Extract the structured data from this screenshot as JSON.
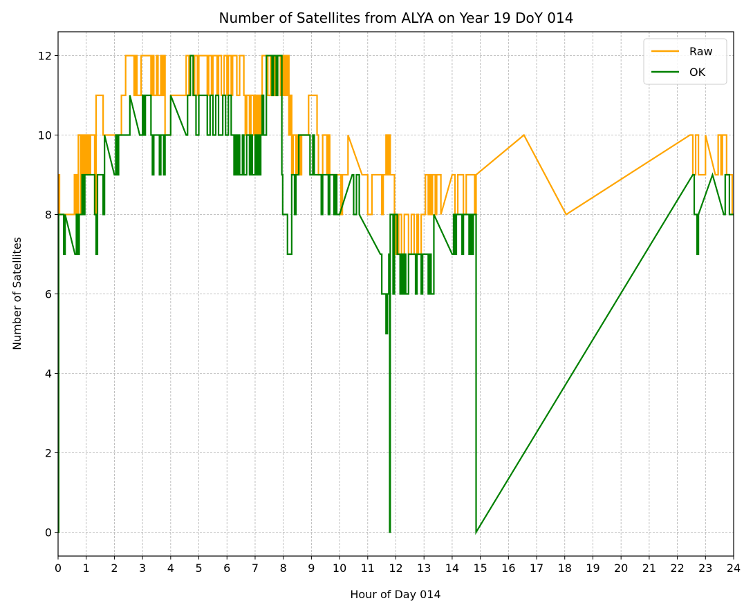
{
  "chart_data": {
    "type": "line",
    "title": "Number of Satellites from ALYA on Year 19 DoY 014",
    "xlabel": "Hour of Day 014",
    "ylabel": "Number of Satellites",
    "xlim": [
      0,
      24
    ],
    "ylim": [
      -0.6,
      12.6
    ],
    "xticks": [
      0,
      1,
      2,
      3,
      4,
      5,
      6,
      7,
      8,
      9,
      10,
      11,
      12,
      13,
      14,
      15,
      16,
      17,
      18,
      19,
      20,
      21,
      22,
      23,
      24
    ],
    "yticks": [
      0,
      2,
      4,
      6,
      8,
      10,
      12
    ],
    "grid": true,
    "legend_position": "top-right",
    "series": [
      {
        "name": "Raw",
        "color": "#ffa500",
        "step": true,
        "points": [
          [
            0,
            0
          ],
          [
            0.02,
            9
          ],
          [
            0.05,
            8
          ],
          [
            0.55,
            8
          ],
          [
            0.58,
            9
          ],
          [
            0.62,
            8
          ],
          [
            0.65,
            9
          ],
          [
            0.68,
            8
          ],
          [
            0.72,
            10
          ],
          [
            0.8,
            8
          ],
          [
            0.85,
            10
          ],
          [
            0.9,
            9
          ],
          [
            0.95,
            10
          ],
          [
            1.0,
            9
          ],
          [
            1.05,
            10
          ],
          [
            1.1,
            9
          ],
          [
            1.15,
            10
          ],
          [
            1.3,
            8
          ],
          [
            1.35,
            11
          ],
          [
            1.55,
            11
          ],
          [
            1.6,
            10
          ],
          [
            1.65,
            10
          ],
          [
            2.2,
            10
          ],
          [
            2.25,
            11
          ],
          [
            2.4,
            12
          ],
          [
            2.7,
            11
          ],
          [
            2.75,
            12
          ],
          [
            2.8,
            11
          ],
          [
            2.9,
            11
          ],
          [
            2.95,
            12
          ],
          [
            3.3,
            11
          ],
          [
            3.35,
            12
          ],
          [
            3.4,
            11
          ],
          [
            3.5,
            12
          ],
          [
            3.55,
            11
          ],
          [
            3.65,
            12
          ],
          [
            3.7,
            11
          ],
          [
            3.75,
            12
          ],
          [
            3.8,
            10
          ],
          [
            4.0,
            11
          ],
          [
            4.5,
            11
          ],
          [
            4.55,
            12
          ],
          [
            4.65,
            11
          ],
          [
            4.7,
            12
          ],
          [
            4.8,
            11
          ],
          [
            4.85,
            12
          ],
          [
            4.95,
            11
          ],
          [
            5.0,
            12
          ],
          [
            5.3,
            11
          ],
          [
            5.35,
            12
          ],
          [
            5.45,
            11
          ],
          [
            5.5,
            12
          ],
          [
            5.65,
            11
          ],
          [
            5.7,
            12
          ],
          [
            5.8,
            11
          ],
          [
            5.9,
            12
          ],
          [
            6.0,
            11
          ],
          [
            6.05,
            12
          ],
          [
            6.15,
            11
          ],
          [
            6.2,
            12
          ],
          [
            6.35,
            11
          ],
          [
            6.45,
            12
          ],
          [
            6.6,
            11
          ],
          [
            6.65,
            10
          ],
          [
            6.7,
            11
          ],
          [
            6.8,
            10
          ],
          [
            6.85,
            11
          ],
          [
            6.95,
            10
          ],
          [
            7.0,
            11
          ],
          [
            7.05,
            10
          ],
          [
            7.1,
            11
          ],
          [
            7.15,
            10
          ],
          [
            7.2,
            11
          ],
          [
            7.25,
            12
          ],
          [
            7.45,
            11
          ],
          [
            7.55,
            12
          ],
          [
            7.6,
            11
          ],
          [
            7.65,
            12
          ],
          [
            7.7,
            11
          ],
          [
            7.8,
            12
          ],
          [
            7.9,
            11
          ],
          [
            7.95,
            12
          ],
          [
            8.0,
            11
          ],
          [
            8.05,
            12
          ],
          [
            8.1,
            11
          ],
          [
            8.15,
            12
          ],
          [
            8.2,
            10
          ],
          [
            8.25,
            11
          ],
          [
            8.3,
            9
          ],
          [
            8.35,
            10
          ],
          [
            8.45,
            9
          ],
          [
            8.5,
            10
          ],
          [
            8.6,
            9
          ],
          [
            8.65,
            10
          ],
          [
            8.9,
            11
          ],
          [
            9.2,
            10
          ],
          [
            9.25,
            9
          ],
          [
            9.4,
            10
          ],
          [
            9.55,
            9
          ],
          [
            9.6,
            10
          ],
          [
            9.65,
            9
          ],
          [
            9.9,
            9
          ],
          [
            10.0,
            9
          ],
          [
            10.05,
            8
          ],
          [
            10.1,
            9
          ],
          [
            10.3,
            10
          ],
          [
            10.8,
            9
          ],
          [
            11.0,
            8
          ],
          [
            11.15,
            9
          ],
          [
            11.5,
            8
          ],
          [
            11.55,
            9
          ],
          [
            11.65,
            10
          ],
          [
            11.7,
            9
          ],
          [
            11.75,
            10
          ],
          [
            11.8,
            9
          ],
          [
            11.85,
            9
          ],
          [
            11.95,
            8
          ],
          [
            12.0,
            7
          ],
          [
            12.1,
            8
          ],
          [
            12.2,
            7
          ],
          [
            12.3,
            8
          ],
          [
            12.45,
            7
          ],
          [
            12.55,
            8
          ],
          [
            12.65,
            7
          ],
          [
            12.75,
            8
          ],
          [
            12.8,
            7
          ],
          [
            12.9,
            8
          ],
          [
            13.05,
            9
          ],
          [
            13.15,
            8
          ],
          [
            13.2,
            9
          ],
          [
            13.25,
            8
          ],
          [
            13.3,
            9
          ],
          [
            13.4,
            8
          ],
          [
            13.45,
            9
          ],
          [
            13.6,
            8
          ],
          [
            14.0,
            9
          ],
          [
            14.1,
            8
          ],
          [
            14.2,
            9
          ],
          [
            14.4,
            8
          ],
          [
            14.5,
            9
          ],
          [
            14.8,
            8
          ],
          [
            14.85,
            9
          ],
          [
            16.55,
            10
          ],
          [
            18.05,
            8
          ],
          [
            22.45,
            10
          ],
          [
            22.55,
            9
          ],
          [
            22.65,
            10
          ],
          [
            22.75,
            9
          ],
          [
            22.9,
            9
          ],
          [
            23.0,
            10
          ],
          [
            23.35,
            9
          ],
          [
            23.45,
            10
          ],
          [
            23.55,
            9
          ],
          [
            23.6,
            10
          ],
          [
            23.75,
            9
          ],
          [
            23.8,
            9
          ],
          [
            23.95,
            8
          ],
          [
            24.0,
            8
          ]
        ]
      },
      {
        "name": "OK",
        "color": "#008000",
        "step": true,
        "points": [
          [
            0,
            0
          ],
          [
            0.02,
            8
          ],
          [
            0.2,
            7
          ],
          [
            0.25,
            8
          ],
          [
            0.6,
            7
          ],
          [
            0.65,
            8
          ],
          [
            0.7,
            7
          ],
          [
            0.75,
            8
          ],
          [
            0.85,
            9
          ],
          [
            0.9,
            8
          ],
          [
            0.95,
            9
          ],
          [
            1.2,
            9
          ],
          [
            1.3,
            8
          ],
          [
            1.35,
            7
          ],
          [
            1.4,
            9
          ],
          [
            1.6,
            8
          ],
          [
            1.65,
            10
          ],
          [
            2.0,
            9
          ],
          [
            2.05,
            10
          ],
          [
            2.1,
            9
          ],
          [
            2.15,
            10
          ],
          [
            2.45,
            10
          ],
          [
            2.55,
            11
          ],
          [
            2.9,
            10
          ],
          [
            3.0,
            11
          ],
          [
            3.05,
            10
          ],
          [
            3.1,
            11
          ],
          [
            3.3,
            10
          ],
          [
            3.35,
            9
          ],
          [
            3.4,
            10
          ],
          [
            3.55,
            10
          ],
          [
            3.6,
            9
          ],
          [
            3.65,
            10
          ],
          [
            3.75,
            9
          ],
          [
            3.8,
            10
          ],
          [
            4.0,
            11
          ],
          [
            4.55,
            10
          ],
          [
            4.6,
            11
          ],
          [
            4.7,
            12
          ],
          [
            4.8,
            11
          ],
          [
            4.9,
            10
          ],
          [
            5.0,
            11
          ],
          [
            5.25,
            11
          ],
          [
            5.3,
            10
          ],
          [
            5.4,
            11
          ],
          [
            5.5,
            10
          ],
          [
            5.6,
            11
          ],
          [
            5.7,
            10
          ],
          [
            5.85,
            11
          ],
          [
            5.95,
            10
          ],
          [
            6.05,
            11
          ],
          [
            6.15,
            10
          ],
          [
            6.25,
            9
          ],
          [
            6.3,
            10
          ],
          [
            6.35,
            9
          ],
          [
            6.4,
            10
          ],
          [
            6.45,
            9
          ],
          [
            6.55,
            10
          ],
          [
            6.6,
            9
          ],
          [
            6.7,
            10
          ],
          [
            6.8,
            9
          ],
          [
            6.85,
            10
          ],
          [
            6.9,
            9
          ],
          [
            7.0,
            10
          ],
          [
            7.05,
            9
          ],
          [
            7.1,
            10
          ],
          [
            7.15,
            9
          ],
          [
            7.2,
            10
          ],
          [
            7.25,
            11
          ],
          [
            7.3,
            10
          ],
          [
            7.4,
            12
          ],
          [
            7.6,
            11
          ],
          [
            7.65,
            12
          ],
          [
            7.75,
            11
          ],
          [
            7.8,
            12
          ],
          [
            7.95,
            9
          ],
          [
            7.98,
            8
          ],
          [
            8.05,
            8
          ],
          [
            8.15,
            7
          ],
          [
            8.3,
            9
          ],
          [
            8.4,
            8
          ],
          [
            8.45,
            9
          ],
          [
            8.55,
            10
          ],
          [
            8.65,
            10
          ],
          [
            8.95,
            9
          ],
          [
            9.05,
            10
          ],
          [
            9.1,
            9
          ],
          [
            9.3,
            9
          ],
          [
            9.35,
            8
          ],
          [
            9.4,
            9
          ],
          [
            9.6,
            8
          ],
          [
            9.65,
            9
          ],
          [
            9.8,
            8
          ],
          [
            9.85,
            9
          ],
          [
            9.9,
            8
          ],
          [
            10.0,
            8
          ],
          [
            10.45,
            9
          ],
          [
            10.5,
            8
          ],
          [
            10.6,
            9
          ],
          [
            10.7,
            8
          ],
          [
            11.45,
            7
          ],
          [
            11.5,
            6
          ],
          [
            11.65,
            5
          ],
          [
            11.7,
            6
          ],
          [
            11.75,
            7
          ],
          [
            11.78,
            0
          ],
          [
            11.8,
            8
          ],
          [
            11.9,
            6
          ],
          [
            11.95,
            8
          ],
          [
            12.05,
            7
          ],
          [
            12.15,
            6
          ],
          [
            12.2,
            7
          ],
          [
            12.25,
            6
          ],
          [
            12.3,
            7
          ],
          [
            12.35,
            6
          ],
          [
            12.45,
            7
          ],
          [
            12.7,
            6
          ],
          [
            12.75,
            7
          ],
          [
            12.9,
            6
          ],
          [
            12.95,
            7
          ],
          [
            13.15,
            6
          ],
          [
            13.2,
            7
          ],
          [
            13.25,
            6
          ],
          [
            13.35,
            8
          ],
          [
            14.0,
            7
          ],
          [
            14.05,
            8
          ],
          [
            14.1,
            7
          ],
          [
            14.15,
            8
          ],
          [
            14.35,
            7
          ],
          [
            14.4,
            8
          ],
          [
            14.6,
            7
          ],
          [
            14.65,
            8
          ],
          [
            14.7,
            7
          ],
          [
            14.75,
            8
          ],
          [
            14.85,
            0
          ],
          [
            22.55,
            9
          ],
          [
            22.6,
            8
          ],
          [
            22.7,
            7
          ],
          [
            22.75,
            8
          ],
          [
            23.25,
            9
          ],
          [
            23.65,
            8
          ],
          [
            23.7,
            9
          ],
          [
            23.85,
            8
          ],
          [
            24.0,
            8
          ]
        ]
      }
    ]
  }
}
